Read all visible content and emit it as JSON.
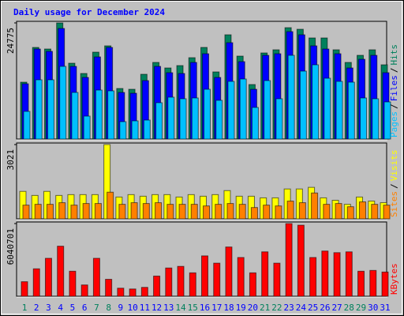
{
  "title": "Daily usage for December 2024",
  "chart_data": [
    {
      "type": "bar",
      "ylim": [
        0,
        24775
      ],
      "yticks": [
        24775
      ],
      "legend_separator": "/",
      "series": [
        {
          "name": "Hits",
          "color": "#00805c",
          "values": [
            12132,
            19546,
            19209,
            24775,
            16176,
            13986,
            18535,
            19883,
            10784,
            10616,
            13817,
            16345,
            15165,
            15671,
            17356,
            19546,
            14323,
            22242,
            17693,
            11627,
            18367,
            19041,
            23759,
            23422,
            21568,
            21568,
            19041,
            16345,
            17861,
            19041,
            15839
          ]
        },
        {
          "name": "Files",
          "color": "#0000ff",
          "values": [
            11795,
            19209,
            18704,
            23590,
            15502,
            13143,
            17524,
            19546,
            9942,
            9773,
            12469,
            15502,
            14154,
            13986,
            16345,
            18198,
            13143,
            20557,
            16513,
            10616,
            17861,
            18198,
            22916,
            22242,
            19883,
            19209,
            18198,
            15165,
            17019,
            17861,
            14154
          ]
        },
        {
          "name": "Pages",
          "color": "#00c0ff",
          "values": [
            5898,
            12638,
            12638,
            15502,
            9942,
            4887,
            10447,
            10279,
            3707,
            3876,
            4044,
            7751,
            8931,
            8594,
            8762,
            10616,
            8257,
            12301,
            12806,
            6740,
            12469,
            8594,
            17861,
            14491,
            15839,
            12975,
            12301,
            12132,
            8762,
            8594,
            7919
          ]
        }
      ]
    },
    {
      "type": "bar",
      "ylim": [
        0,
        3021
      ],
      "yticks": [
        3021
      ],
      "legend_separator": "/",
      "series": [
        {
          "name": "Visits",
          "color": "#ffff00",
          "values": [
            1117,
            952,
            1117,
            952,
            985,
            985,
            985,
            3021,
            887,
            985,
            920,
            985,
            985,
            887,
            985,
            920,
            985,
            1149,
            920,
            920,
            854,
            854,
            1215,
            1215,
            1281,
            854,
            755,
            591,
            887,
            722,
            657
          ]
        },
        {
          "name": "Sites",
          "color": "#ff8000",
          "values": [
            558,
            591,
            591,
            657,
            558,
            624,
            624,
            1084,
            591,
            657,
            624,
            657,
            591,
            591,
            591,
            525,
            591,
            624,
            591,
            460,
            558,
            525,
            722,
            657,
            1051,
            591,
            624,
            493,
            690,
            591,
            558
          ]
        }
      ]
    },
    {
      "type": "bar",
      "ylim": [
        0,
        6040701
      ],
      "yticks": [
        6040701
      ],
      "categories": [
        "1",
        "2",
        "3",
        "4",
        "5",
        "6",
        "7",
        "8",
        "9",
        "10",
        "11",
        "12",
        "13",
        "14",
        "15",
        "16",
        "17",
        "18",
        "19",
        "20",
        "21",
        "22",
        "23",
        "24",
        "25",
        "26",
        "27",
        "28",
        "29",
        "30",
        "31"
      ],
      "category_colors": [
        "#00805c",
        "#0000ff",
        "#0000ff",
        "#0000ff",
        "#0000ff",
        "#0000ff",
        "#00805c",
        "#00805c",
        "#0000ff",
        "#0000ff",
        "#0000ff",
        "#0000ff",
        "#0000ff",
        "#00805c",
        "#00805c",
        "#0000ff",
        "#0000ff",
        "#0000ff",
        "#0000ff",
        "#0000ff",
        "#00805c",
        "#00805c",
        "#0000ff",
        "#0000ff",
        "#0000ff",
        "#0000ff",
        "#0000ff",
        "#00805c",
        "#00805c",
        "#0000ff",
        "#0000ff"
      ],
      "series": [
        {
          "name": "KBytes",
          "color": "#ff0000",
          "values": [
            1208142,
            2282046,
            3154593,
            4161378,
            2080689,
            939666,
            3154593,
            1409499,
            671190,
            604071,
            738309,
            1677975,
            2349165,
            2483403,
            1946451,
            3355950,
            2751879,
            4094259,
            3221712,
            1946451,
            3691545,
            2751879,
            6040701,
            5906472,
            3221712,
            3758664,
            3624426,
            3691545,
            2080689,
            2147808,
            2013570
          ]
        }
      ]
    }
  ]
}
